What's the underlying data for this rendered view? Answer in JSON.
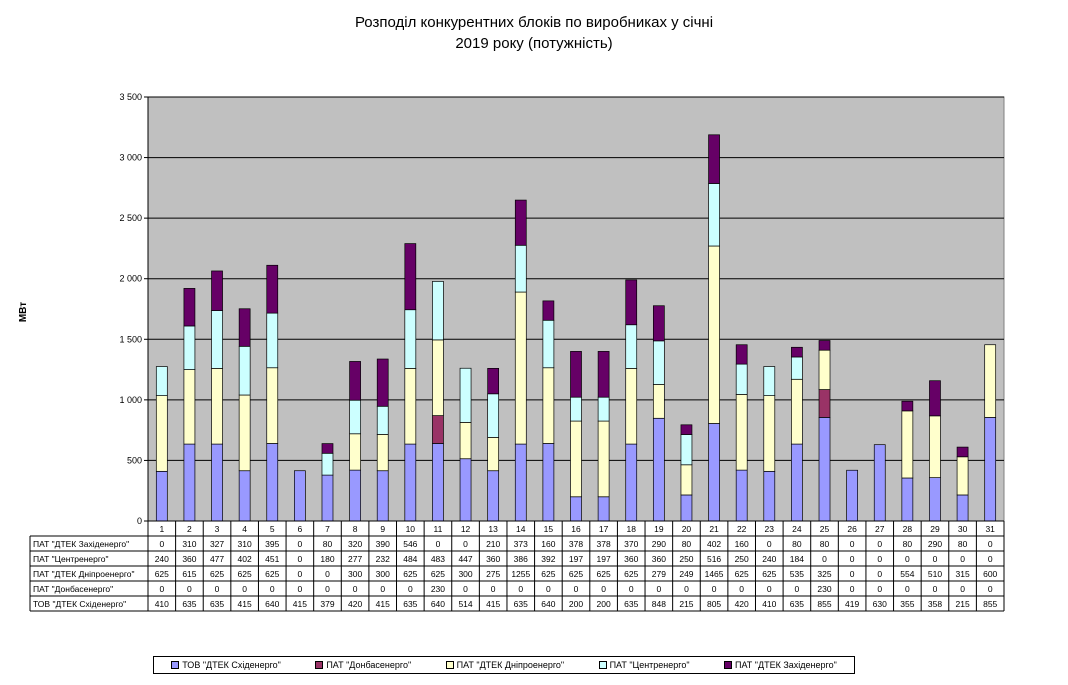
{
  "title_line1": "Розподіл конкурентних  блоків по виробниках  у січні",
  "title_line2": "2019 року  (потужність)",
  "chart_data": {
    "type": "bar",
    "stacked": true,
    "ylabel": "МВт",
    "ylim": [
      0,
      3500
    ],
    "yticks": [
      0,
      500,
      1000,
      1500,
      2000,
      2500,
      3000,
      3500
    ],
    "ytick_labels": [
      "0",
      "500",
      "1 000",
      "1 500",
      "2 000",
      "2 500",
      "3 000",
      "3 500"
    ],
    "grid": true,
    "legend_position": "bottom",
    "categories": [
      "1",
      "2",
      "3",
      "4",
      "5",
      "6",
      "7",
      "8",
      "9",
      "10",
      "11",
      "12",
      "13",
      "14",
      "15",
      "16",
      "17",
      "18",
      "19",
      "20",
      "21",
      "22",
      "23",
      "24",
      "25",
      "26",
      "27",
      "28",
      "29",
      "30",
      "31"
    ],
    "series": [
      {
        "name": "ТОВ \"ДТЕК Східенерго\"",
        "color": "#9999ff",
        "values": [
          410,
          635,
          635,
          415,
          640,
          415,
          379,
          420,
          415,
          635,
          640,
          514,
          415,
          635,
          640,
          200,
          200,
          635,
          848,
          215,
          805,
          420,
          410,
          635,
          855,
          419,
          630,
          355,
          358,
          215,
          855
        ]
      },
      {
        "name": "ПАТ \"Донбасенерго\"",
        "color": "#993366",
        "values": [
          0,
          0,
          0,
          0,
          0,
          0,
          0,
          0,
          0,
          0,
          230,
          0,
          0,
          0,
          0,
          0,
          0,
          0,
          0,
          0,
          0,
          0,
          0,
          0,
          230,
          0,
          0,
          0,
          0,
          0,
          0
        ]
      },
      {
        "name": "ПАТ \"ДТЕК Дніпроенерго\"",
        "color": "#ffffcc",
        "values": [
          625,
          615,
          625,
          625,
          625,
          0,
          0,
          300,
          300,
          625,
          625,
          300,
          275,
          1255,
          625,
          625,
          625,
          625,
          279,
          249,
          1465,
          625,
          625,
          535,
          325,
          0,
          0,
          554,
          510,
          315,
          600
        ]
      },
      {
        "name": "ПАТ \"Центренерго\"",
        "color": "#ccffff",
        "values": [
          240,
          360,
          477,
          402,
          451,
          0,
          180,
          277,
          232,
          484,
          483,
          447,
          360,
          386,
          392,
          197,
          197,
          360,
          360,
          250,
          516,
          250,
          240,
          184,
          0,
          0,
          0,
          0,
          0,
          0,
          0
        ]
      },
      {
        "name": "ПАТ \"ДТЕК Західенерго\"",
        "color": "#660066",
        "values": [
          0,
          310,
          327,
          310,
          395,
          0,
          80,
          320,
          390,
          546,
          0,
          0,
          210,
          373,
          160,
          378,
          378,
          370,
          290,
          80,
          402,
          160,
          0,
          80,
          80,
          0,
          0,
          80,
          290,
          80,
          0
        ]
      }
    ],
    "table_row_order": [
      4,
      3,
      2,
      1,
      0
    ],
    "table_labels": [
      "ТОВ \"ДТЕК Східенерго\"",
      "ПАТ \"Донбасенерго\"",
      "ПАТ \"ДТЕК Дніпроенерго\"",
      "ПАТ \"Центренерго\"",
      "ПАТ \"ДТЕК Західенерго\""
    ]
  },
  "colors": {
    "plot_background": "#c0c0c0",
    "grid": "#000000"
  }
}
